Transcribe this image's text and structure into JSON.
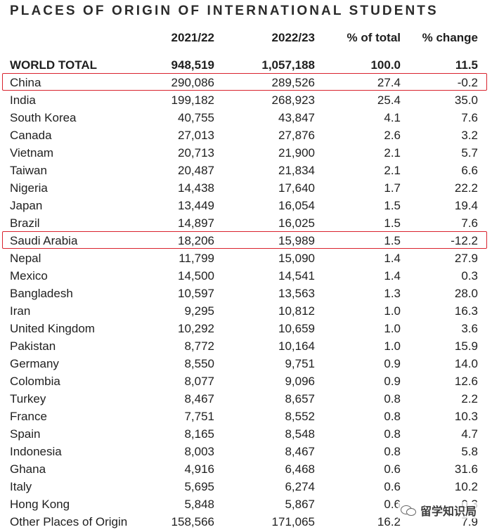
{
  "chart_data": {
    "type": "table",
    "title": "PLACES OF ORIGIN OF INTERNATIONAL STUDENTS",
    "columns": [
      "2021/22",
      "2022/23",
      "% of total",
      "% change"
    ],
    "total": {
      "name": "WORLD TOTAL",
      "values": [
        "948,519",
        "1,057,188",
        "100.0",
        "11.5"
      ]
    },
    "rows": [
      {
        "name": "China",
        "values": [
          "290,086",
          "289,526",
          "27.4",
          "-0.2"
        ],
        "highlight": true
      },
      {
        "name": "India",
        "values": [
          "199,182",
          "268,923",
          "25.4",
          "35.0"
        ]
      },
      {
        "name": "South Korea",
        "values": [
          "40,755",
          "43,847",
          "4.1",
          "7.6"
        ]
      },
      {
        "name": "Canada",
        "values": [
          "27,013",
          "27,876",
          "2.6",
          "3.2"
        ]
      },
      {
        "name": "Vietnam",
        "values": [
          "20,713",
          "21,900",
          "2.1",
          "5.7"
        ]
      },
      {
        "name": "Taiwan",
        "values": [
          "20,487",
          "21,834",
          "2.1",
          "6.6"
        ]
      },
      {
        "name": "Nigeria",
        "values": [
          "14,438",
          "17,640",
          "1.7",
          "22.2"
        ]
      },
      {
        "name": "Japan",
        "values": [
          "13,449",
          "16,054",
          "1.5",
          "19.4"
        ]
      },
      {
        "name": "Brazil",
        "values": [
          "14,897",
          "16,025",
          "1.5",
          "7.6"
        ]
      },
      {
        "name": "Saudi Arabia",
        "values": [
          "18,206",
          "15,989",
          "1.5",
          "-12.2"
        ],
        "highlight": true
      },
      {
        "name": "Nepal",
        "values": [
          "11,799",
          "15,090",
          "1.4",
          "27.9"
        ]
      },
      {
        "name": "Mexico",
        "values": [
          "14,500",
          "14,541",
          "1.4",
          "0.3"
        ]
      },
      {
        "name": "Bangladesh",
        "values": [
          "10,597",
          "13,563",
          "1.3",
          "28.0"
        ]
      },
      {
        "name": "Iran",
        "values": [
          "9,295",
          "10,812",
          "1.0",
          "16.3"
        ]
      },
      {
        "name": "United Kingdom",
        "values": [
          "10,292",
          "10,659",
          "1.0",
          "3.6"
        ]
      },
      {
        "name": "Pakistan",
        "values": [
          "8,772",
          "10,164",
          "1.0",
          "15.9"
        ]
      },
      {
        "name": "Germany",
        "values": [
          "8,550",
          "9,751",
          "0.9",
          "14.0"
        ]
      },
      {
        "name": "Colombia",
        "values": [
          "8,077",
          "9,096",
          "0.9",
          "12.6"
        ]
      },
      {
        "name": "Turkey",
        "values": [
          "8,467",
          "8,657",
          "0.8",
          "2.2"
        ]
      },
      {
        "name": "France",
        "values": [
          "7,751",
          "8,552",
          "0.8",
          "10.3"
        ]
      },
      {
        "name": "Spain",
        "values": [
          "8,165",
          "8,548",
          "0.8",
          "4.7"
        ]
      },
      {
        "name": "Indonesia",
        "values": [
          "8,003",
          "8,467",
          "0.8",
          "5.8"
        ]
      },
      {
        "name": "Ghana",
        "values": [
          "4,916",
          "6,468",
          "0.6",
          "31.6"
        ]
      },
      {
        "name": "Italy",
        "values": [
          "5,695",
          "6,274",
          "0.6",
          "10.2"
        ]
      },
      {
        "name": "Hong Kong",
        "values": [
          "5,848",
          "5,867",
          "0.6",
          "0.3"
        ]
      },
      {
        "name": "Other Places of Origin",
        "values": [
          "158,566",
          "171,065",
          "16.2",
          "7.9"
        ]
      }
    ],
    "highlight_color": "#d9232e"
  },
  "watermark": {
    "text": "留学知识局",
    "icon": "wechat-icon"
  }
}
